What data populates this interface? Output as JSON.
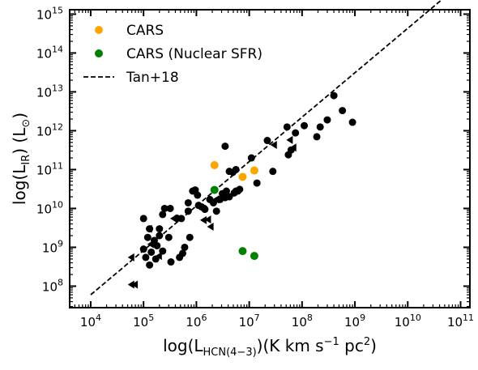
{
  "chart_data": {
    "type": "scatter",
    "xlabel": "log(L_HCN(4−3))(K km s^−1 pc^2)",
    "ylabel": "log(L_IR) (L_⊙)",
    "xscale": "log",
    "yscale": "log",
    "xlim": [
      4000,
      150000000000
    ],
    "ylim": [
      28000000,
      1300000000000000
    ],
    "x_ticks": [
      {
        "base": "10",
        "exp": "4",
        "value": 10000
      },
      {
        "base": "10",
        "exp": "5",
        "value": 100000
      },
      {
        "base": "10",
        "exp": "6",
        "value": 1000000
      },
      {
        "base": "10",
        "exp": "7",
        "value": 10000000
      },
      {
        "base": "10",
        "exp": "8",
        "value": 100000000
      },
      {
        "base": "10",
        "exp": "9",
        "value": 1000000000
      },
      {
        "base": "10",
        "exp": "10",
        "value": 10000000000
      },
      {
        "base": "10",
        "exp": "11",
        "value": 100000000000
      }
    ],
    "y_ticks": [
      {
        "base": "10",
        "exp": "8",
        "value": 100000000
      },
      {
        "base": "10",
        "exp": "9",
        "value": 1000000000
      },
      {
        "base": "10",
        "exp": "10",
        "value": 10000000000
      },
      {
        "base": "10",
        "exp": "11",
        "value": 100000000000
      },
      {
        "base": "10",
        "exp": "12",
        "value": 1000000000000
      },
      {
        "base": "10",
        "exp": "13",
        "value": 10000000000000
      },
      {
        "base": "10",
        "exp": "14",
        "value": 100000000000000
      },
      {
        "base": "10",
        "exp": "15",
        "value": 1000000000000000
      }
    ],
    "legend_position": "top-left",
    "series": [
      {
        "name": "CARS",
        "kind": "points",
        "color": "#FFA500",
        "points": [
          [
            2200000,
            130000000000
          ],
          [
            7500000,
            65000000000
          ],
          [
            12500000,
            95000000000
          ]
        ]
      },
      {
        "name": "CARS (Nuclear SFR)",
        "kind": "points",
        "color": "#008000",
        "points": [
          [
            2200000,
            30000000000
          ],
          [
            7500000,
            800000000
          ],
          [
            12500000,
            600000000
          ]
        ]
      },
      {
        "name": "Tan+18",
        "kind": "dashed-line",
        "color": "#000000",
        "points": [
          [
            10000,
            60000000
          ],
          [
            100000000000,
            6000000000000000
          ]
        ]
      },
      {
        "name": "",
        "kind": "black-points",
        "color": "#000000",
        "points": [
          [
            100000,
            5500000000
          ],
          [
            130000,
            3000000000
          ],
          [
            200000,
            3000000000
          ],
          [
            230000,
            7000000000
          ],
          [
            250000,
            10000000000
          ],
          [
            320000,
            10000000000
          ],
          [
            120000,
            1800000000
          ],
          [
            160000,
            1500000000
          ],
          [
            200000,
            2000000000
          ],
          [
            300000,
            1800000000
          ],
          [
            100000,
            900000000
          ],
          [
            140000,
            750000000
          ],
          [
            180000,
            1100000000
          ],
          [
            230000,
            800000000
          ],
          [
            110000,
            550000000
          ],
          [
            130000,
            350000000
          ],
          [
            170000,
            500000000
          ],
          [
            330000,
            420000000
          ],
          [
            480000,
            550000000
          ],
          [
            550000,
            700000000
          ],
          [
            600000,
            1000000000
          ],
          [
            750000,
            1800000000
          ],
          [
            520000,
            5500000000
          ],
          [
            700000,
            8500000000
          ],
          [
            850000,
            28000000000
          ],
          [
            1050000,
            22000000000
          ],
          [
            1250000,
            11000000000
          ],
          [
            1450000,
            9500000000
          ],
          [
            1800000,
            17000000000
          ],
          [
            2100000,
            14000000000
          ],
          [
            2400000,
            8500000000
          ],
          [
            2800000,
            17000000000
          ],
          [
            3100000,
            24000000000
          ],
          [
            3500000,
            19000000000
          ],
          [
            3700000,
            28000000000
          ],
          [
            4200000,
            20000000000
          ],
          [
            5200000,
            25000000000
          ],
          [
            5600000,
            28000000000
          ],
          [
            6100000,
            28000000000
          ],
          [
            6600000,
            31000000000
          ],
          [
            3500000,
            400000000000
          ],
          [
            4200000,
            90000000000
          ],
          [
            4900000,
            85000000000
          ],
          [
            5600000,
            100000000000
          ],
          [
            11000000,
            200000000000
          ],
          [
            14000000,
            45000000000
          ],
          [
            22000000,
            560000000000
          ],
          [
            28000000,
            90000000000
          ],
          [
            52000000,
            1250000000000
          ],
          [
            55000000,
            240000000000
          ],
          [
            62000000,
            320000000000
          ],
          [
            75000000,
            880000000000
          ],
          [
            110000000,
            1350000000000
          ],
          [
            190000000,
            700000000000
          ],
          [
            220000000,
            1250000000000
          ],
          [
            300000000,
            1900000000000
          ],
          [
            400000000,
            8000000000000
          ],
          [
            580000000,
            3300000000000
          ],
          [
            900000000,
            1650000000000
          ],
          [
            700000,
            14000000000
          ],
          [
            950000,
            30000000000
          ],
          [
            430000,
            5600000000
          ],
          [
            1400000,
            10000000000
          ],
          [
            1100000,
            12000000000
          ]
        ]
      },
      {
        "name": "",
        "kind": "upper-limits",
        "color": "#000000",
        "points": [
          [
            60000,
            550000000
          ],
          [
            70000,
            110000000
          ],
          [
            60000,
            110000000
          ],
          [
            140000,
            1200000000
          ],
          [
            130000,
            3000000000
          ],
          [
            200000,
            600000000
          ],
          [
            380000,
            5500000000
          ],
          [
            1400000,
            5000000000
          ],
          [
            1700000,
            5200000000
          ],
          [
            1900000,
            3400000000
          ],
          [
            30000000,
            430000000000
          ],
          [
            70000000,
            370000000000
          ],
          [
            60000000,
            580000000000
          ],
          [
            2400000,
            17000000000
          ]
        ]
      }
    ]
  }
}
